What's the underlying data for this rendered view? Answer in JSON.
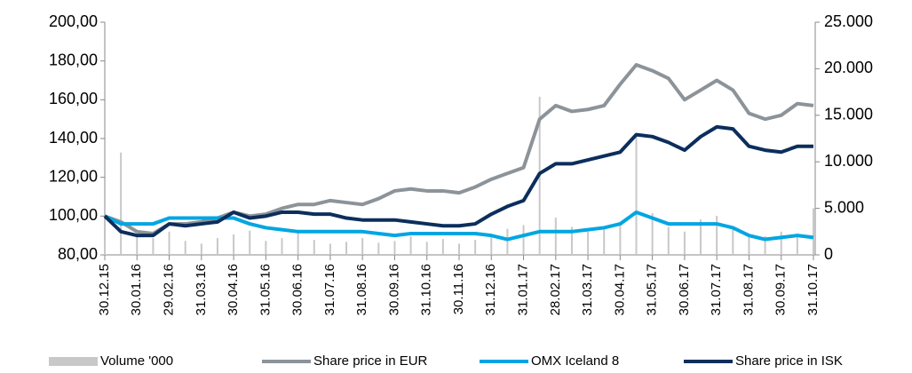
{
  "chart_data": {
    "type": "line",
    "categories": [
      "30.12.15",
      null,
      "30.01.16",
      null,
      "29.02.16",
      null,
      "31.03.16",
      null,
      "30.04.16",
      null,
      "31.05.16",
      null,
      "30.06.16",
      null,
      "31.07.16",
      null,
      "31.08.16",
      null,
      "30.09.16",
      null,
      "31.10.16",
      null,
      "30.11.16",
      null,
      "31.12.16",
      null,
      "31.01.17",
      null,
      "28.02.17",
      null,
      "31.03.17",
      null,
      "30.04.17",
      null,
      "31.05.17",
      null,
      "30.06.17",
      null,
      "31.07.17",
      null,
      "31.08.17",
      null,
      "30.09.17",
      null,
      "31.10.17"
    ],
    "ylim": [
      80,
      200
    ],
    "yticks": [
      {
        "value": 80,
        "label": "80,00"
      },
      {
        "value": 100,
        "label": "100,00"
      },
      {
        "value": 120,
        "label": "120,00"
      },
      {
        "value": 140,
        "label": "140,00"
      },
      {
        "value": 160,
        "label": "160,00"
      },
      {
        "value": 180,
        "label": "180,00"
      },
      {
        "value": 200,
        "label": "200,00"
      }
    ],
    "y2lim": [
      0,
      25000
    ],
    "y2ticks": [
      0,
      {
        "value": 5000,
        "label": "5.000"
      },
      {
        "value": 10000,
        "label": "10.000"
      },
      {
        "value": 15000,
        "label": "15.000"
      },
      {
        "value": 20000,
        "label": "20.000"
      },
      {
        "value": 25000,
        "label": "25.000"
      }
    ],
    "series": [
      {
        "name": "Volume '000",
        "type": "bar",
        "axis": "y2",
        "color": "#c8c8c8",
        "values": [
          1500,
          11000,
          2000,
          1800,
          2500,
          1500,
          1200,
          1800,
          2200,
          2600,
          1500,
          1800,
          2400,
          1600,
          1200,
          1400,
          1800,
          1300,
          1500,
          2000,
          1400,
          1700,
          1200,
          1600,
          2200,
          2800,
          3200,
          17000,
          4000,
          3000,
          2500,
          2800,
          3500,
          13000,
          4500,
          3000,
          2500,
          3800,
          4200,
          2800,
          2200,
          2000,
          2500,
          2200,
          5000
        ]
      },
      {
        "name": "Share price in EUR",
        "axis": "y",
        "color": "#8c9399",
        "values": [
          100,
          97,
          92,
          91,
          96,
          96,
          97,
          99,
          102,
          100,
          101,
          104,
          106,
          106,
          108,
          107,
          106,
          109,
          113,
          114,
          113,
          113,
          112,
          115,
          119,
          122,
          125,
          150,
          157,
          154,
          155,
          157,
          168,
          178,
          175,
          171,
          160,
          165,
          170,
          165,
          153,
          150,
          152,
          158,
          157
        ]
      },
      {
        "name": "OMX Iceland 8",
        "axis": "y",
        "color": "#00a6e2",
        "values": [
          100,
          96,
          96,
          96,
          99,
          99,
          99,
          99,
          99,
          96,
          94,
          93,
          92,
          92,
          92,
          92,
          92,
          91,
          90,
          91,
          91,
          91,
          91,
          91,
          90,
          88,
          90,
          92,
          92,
          92,
          93,
          94,
          96,
          102,
          99,
          96,
          96,
          96,
          96,
          94,
          90,
          88,
          89,
          90,
          89
        ]
      },
      {
        "name": "Share price in ISK",
        "axis": "y",
        "color": "#0c2e5c",
        "values": [
          100,
          92,
          90,
          90,
          96,
          95,
          96,
          97,
          102,
          99,
          100,
          102,
          102,
          101,
          101,
          99,
          98,
          98,
          98,
          97,
          96,
          95,
          95,
          96,
          101,
          105,
          108,
          122,
          127,
          127,
          129,
          131,
          133,
          142,
          141,
          138,
          134,
          141,
          146,
          145,
          136,
          134,
          133,
          136,
          136
        ]
      }
    ]
  }
}
